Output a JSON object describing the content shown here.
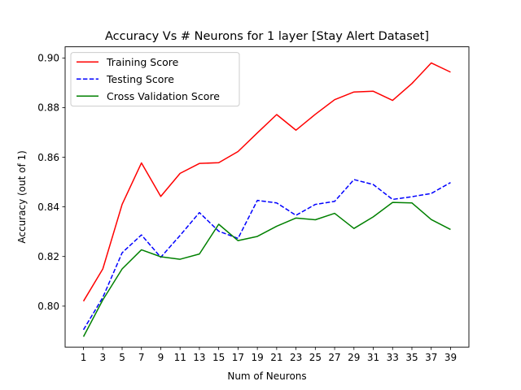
{
  "chart_data": {
    "type": "line",
    "title": "Accuracy Vs # Neurons for 1 layer [Stay Alert Dataset]",
    "xlabel": "Num of Neurons",
    "ylabel": "Accuracy (out of 1)",
    "x": [
      1,
      3,
      5,
      7,
      9,
      11,
      13,
      15,
      17,
      19,
      21,
      23,
      25,
      27,
      29,
      31,
      33,
      35,
      37,
      39
    ],
    "xticks": [
      "1",
      "3",
      "5",
      "7",
      "9",
      "11",
      "13",
      "15",
      "17",
      "19",
      "21",
      "23",
      "25",
      "27",
      "29",
      "31",
      "33",
      "35",
      "37",
      "39"
    ],
    "xlim": [
      -0.9,
      40.9
    ],
    "ylim": [
      0.7835,
      0.9045
    ],
    "yticks": [
      "0.80",
      "0.82",
      "0.84",
      "0.86",
      "0.88",
      "0.90"
    ],
    "ytick_values": [
      0.8,
      0.82,
      0.84,
      0.86,
      0.88,
      0.9
    ],
    "grid": false,
    "legend": "upper-left",
    "series": [
      {
        "name": "Training Score",
        "color": "#ff0000",
        "dash": "solid",
        "values": [
          0.802,
          0.815,
          0.841,
          0.8577,
          0.8442,
          0.8535,
          0.8575,
          0.8578,
          0.8623,
          0.8698,
          0.8772,
          0.8709,
          0.8773,
          0.8832,
          0.8863,
          0.8866,
          0.8829,
          0.8897,
          0.898,
          0.8943
        ]
      },
      {
        "name": "Testing Score",
        "color": "#0000ff",
        "dash": "dashed",
        "values": [
          0.7905,
          0.8035,
          0.8215,
          0.8287,
          0.8197,
          0.8285,
          0.8377,
          0.8302,
          0.8273,
          0.8426,
          0.8416,
          0.8366,
          0.841,
          0.8422,
          0.851,
          0.849,
          0.843,
          0.8441,
          0.8454,
          0.8498
        ]
      },
      {
        "name": "Cross Validation Score",
        "color": "#008000",
        "dash": "solid",
        "values": [
          0.7877,
          0.8025,
          0.815,
          0.8227,
          0.8199,
          0.8189,
          0.821,
          0.833,
          0.8264,
          0.8281,
          0.8322,
          0.8355,
          0.8348,
          0.8374,
          0.8313,
          0.836,
          0.8418,
          0.8416,
          0.8349,
          0.8309
        ]
      }
    ]
  }
}
